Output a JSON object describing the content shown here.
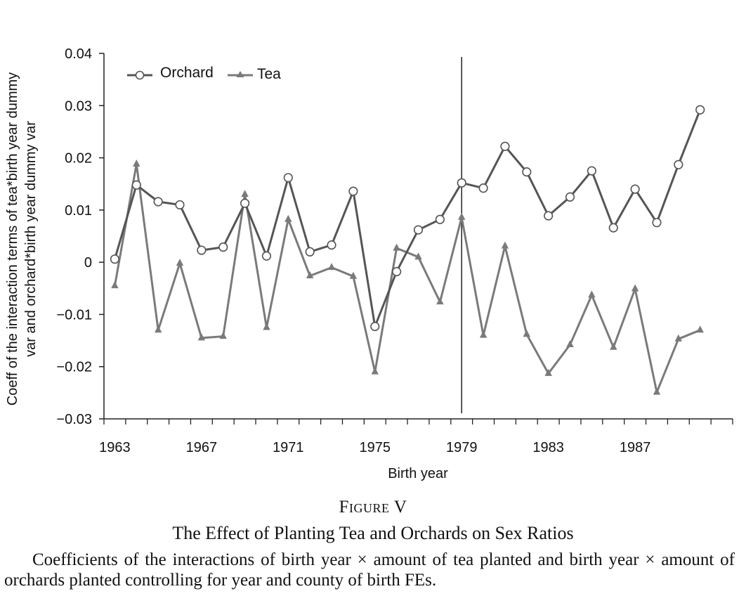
{
  "figure": {
    "label": "Figure V",
    "title": "The Effect of Planting Tea and Orchards on Sex Ratios",
    "note": "Coefficients of the interactions of birth year × amount of tea planted and birth year × amount of orchards planted controlling for year and county of birth FEs."
  },
  "chart_data": {
    "type": "line",
    "xlabel": "Birth year",
    "ylabel": "Coeff of the interaction terms of tea*birth year dummy var and orchard*birth year dummy var",
    "ylabel_lines": [
      "Coeff of the interaction terms of tea*birth year dummy",
      "var and orchard*birth year dummy var"
    ],
    "ylim": [
      -0.03,
      0.04
    ],
    "yticks": [
      0.04,
      0.03,
      0.02,
      0.01,
      0,
      -0.01,
      -0.02,
      -0.03
    ],
    "ytick_labels": [
      "0.04",
      "0.03",
      "0.02",
      "0.01",
      "0",
      "−0.01",
      "−0.02",
      "−0.03"
    ],
    "xlim": [
      1962.5,
      1991.5
    ],
    "xtick_labels": [
      "1963",
      "1967",
      "1971",
      "1975",
      "1979",
      "1983",
      "1987"
    ],
    "x": [
      1963,
      1964,
      1965,
      1966,
      1967,
      1968,
      1969,
      1970,
      1971,
      1972,
      1973,
      1974,
      1975,
      1976,
      1977,
      1978,
      1979,
      1980,
      1981,
      1982,
      1983,
      1984,
      1985,
      1986,
      1987,
      1988,
      1989,
      1990
    ],
    "series": [
      {
        "name": "Orchard",
        "marker": "circle",
        "color": "#555555",
        "values": [
          0.0006,
          0.0148,
          0.0116,
          0.011,
          0.0023,
          0.0029,
          0.0113,
          0.0012,
          0.0162,
          0.002,
          0.0033,
          0.0136,
          -0.0123,
          -0.0018,
          0.0062,
          0.0082,
          0.0152,
          0.0142,
          0.0222,
          0.0173,
          0.0089,
          0.0125,
          0.0175,
          0.0066,
          0.014,
          0.0076,
          0.0187,
          0.0292
        ]
      },
      {
        "name": "Tea",
        "marker": "triangle",
        "color": "#7a7a7a",
        "values": [
          -0.0045,
          0.0188,
          -0.013,
          -0.0002,
          -0.0145,
          -0.0142,
          0.013,
          -0.0125,
          0.0082,
          -0.0026,
          -0.001,
          -0.0027,
          -0.021,
          0.0027,
          0.001,
          -0.0076,
          0.0086,
          -0.014,
          0.0031,
          -0.0138,
          -0.0213,
          -0.0158,
          -0.0063,
          -0.0163,
          -0.0051,
          -0.0249,
          -0.0147,
          -0.013
        ]
      }
    ],
    "vertical_line_x": 1979,
    "legend": "top-left",
    "grid": false
  }
}
